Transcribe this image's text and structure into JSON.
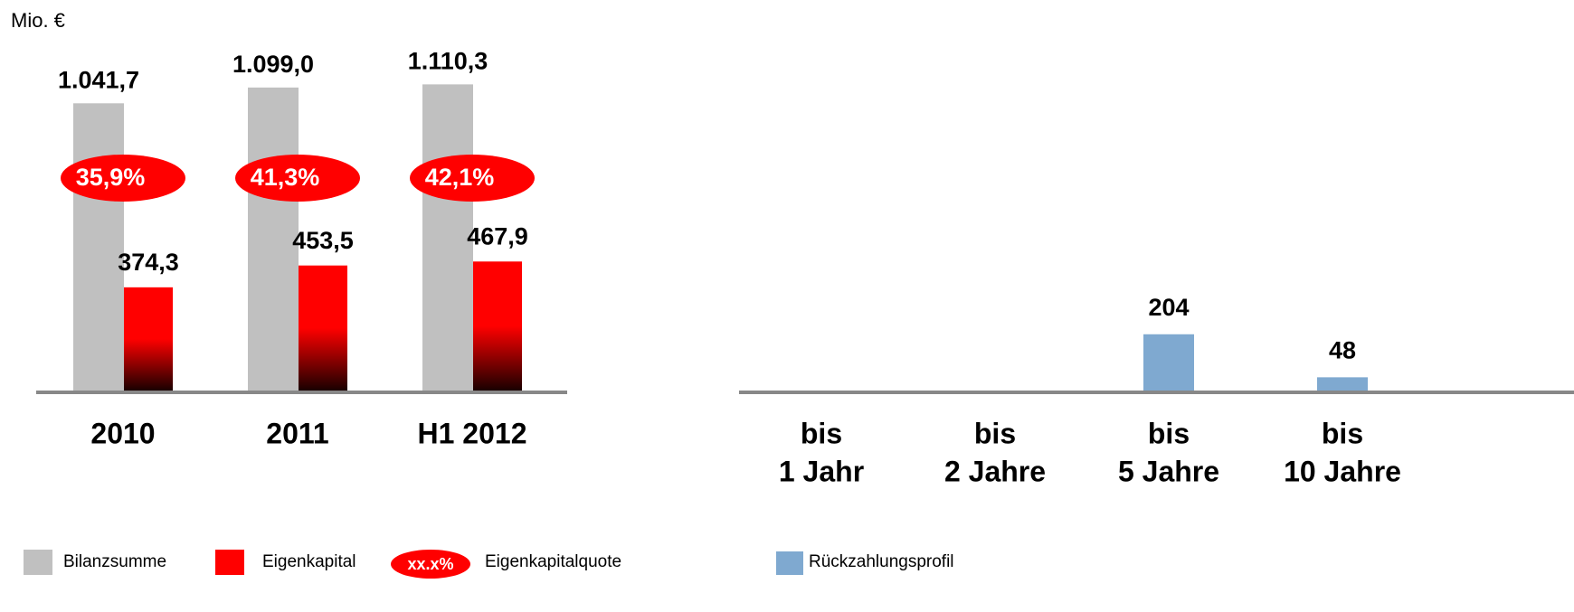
{
  "chart_data": [
    {
      "type": "grouped_bar",
      "y_label": "Mio. €",
      "categories": [
        "2010",
        "2011",
        "H1 2012"
      ],
      "series": [
        {
          "name": "Bilanzsumme",
          "color": "#c0c0c0",
          "values": [
            1041.7,
            1099.0,
            1110.3
          ],
          "value_labels": [
            "1.041,7",
            "1.099,0",
            "1.110,3"
          ]
        },
        {
          "name": "Eigenkapital",
          "color": "#ff0000",
          "values": [
            374.3,
            453.5,
            467.9
          ],
          "value_labels": [
            "374,3",
            "453,5",
            "467,9"
          ]
        }
      ],
      "ratio": {
        "name": "Eigenkapitalquote",
        "color": "#ff0000",
        "legend_symbol": "xx.x%",
        "values": [
          35.9,
          41.3,
          42.1
        ],
        "value_labels": [
          "35,9%",
          "41,3%",
          "42,1%"
        ]
      },
      "ylim": [
        0,
        1200
      ]
    },
    {
      "type": "bar",
      "categories": [
        [
          "bis",
          "1 Jahr"
        ],
        [
          "bis",
          "2 Jahre"
        ],
        [
          "bis",
          "5 Jahre"
        ],
        [
          "bis",
          "10 Jahre"
        ]
      ],
      "series": [
        {
          "name": "Rückzahlungsprofil",
          "color": "#7fa9d0",
          "values": [
            0,
            0,
            204,
            48
          ]
        }
      ],
      "ylim": [
        0,
        1200
      ]
    }
  ]
}
